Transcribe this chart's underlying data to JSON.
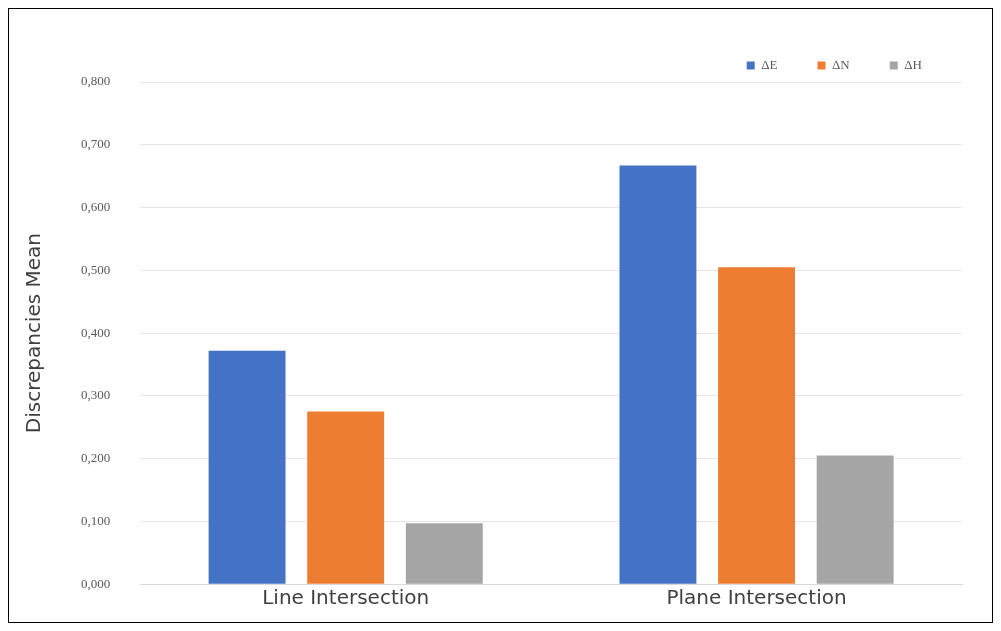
{
  "chart_data": {
    "type": "bar",
    "ylabel": "Discrepancies Mean",
    "categories": [
      "Line Intersection",
      "Plane Intersection"
    ],
    "series": [
      {
        "name": "ΔE",
        "color": "#4472c4",
        "values": [
          0.372,
          0.667
        ]
      },
      {
        "name": "ΔN",
        "color": "#ed7d31",
        "values": [
          0.275,
          0.505
        ]
      },
      {
        "name": "ΔH",
        "color": "#a5a5a5",
        "values": [
          0.097,
          0.205
        ]
      }
    ],
    "ylim": [
      0,
      0.8
    ],
    "yticks": [
      {
        "value": 0,
        "label": "0,000"
      },
      {
        "value": 0.1,
        "label": "0,100"
      },
      {
        "value": 0.2,
        "label": "0,200"
      },
      {
        "value": 0.3,
        "label": "0,300"
      },
      {
        "value": 0.4,
        "label": "0,400"
      },
      {
        "value": 0.5,
        "label": "0,500"
      },
      {
        "value": 0.6,
        "label": "0,600"
      },
      {
        "value": 0.7,
        "label": "0,700"
      },
      {
        "value": 0.8,
        "label": "0,800"
      }
    ],
    "grid": "y",
    "legend": "top right"
  }
}
